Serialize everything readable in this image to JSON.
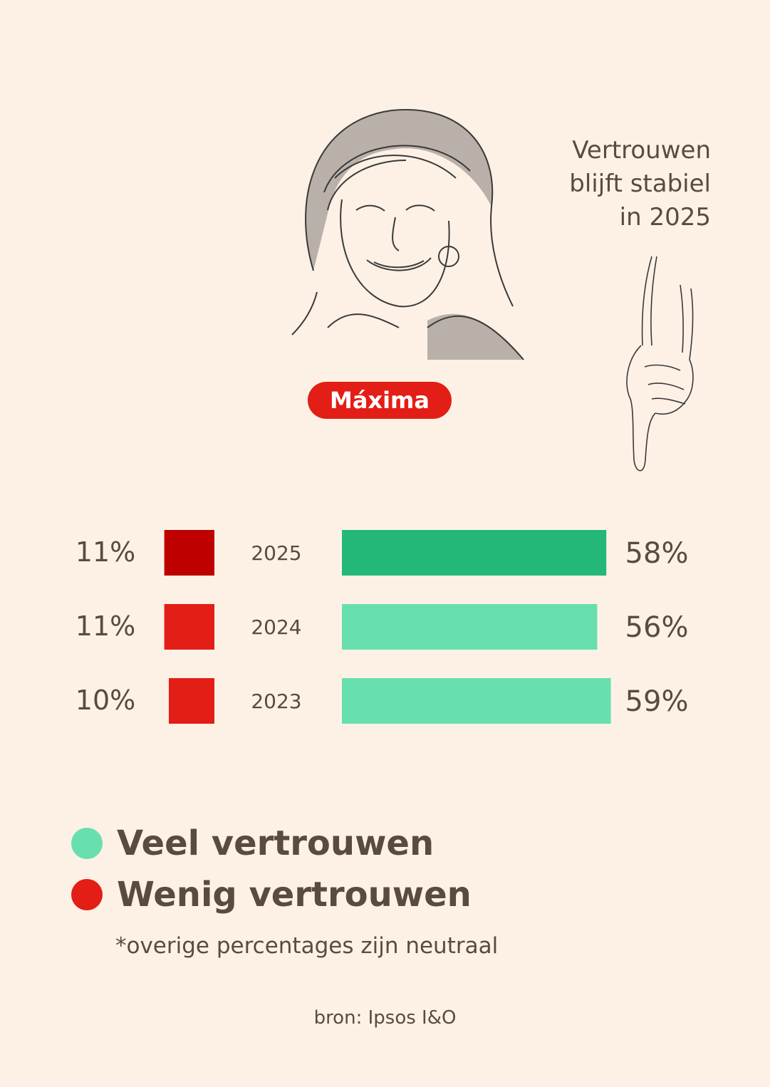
{
  "headline": {
    "line1": "Vertrouwen",
    "line2": "blijft stabiel",
    "line3": "in 2025"
  },
  "person": {
    "name": "Máxima",
    "portrait": "portrait-sketch-maxima",
    "hand_icon": "pointing-hand-down-icon"
  },
  "chart_data": {
    "type": "bar",
    "orientation": "horizontal",
    "categories": [
      "2025",
      "2024",
      "2023"
    ],
    "series": [
      {
        "name": "Veel vertrouwen",
        "values": [
          58,
          56,
          59
        ],
        "labels": [
          "58%",
          "56%",
          "59%"
        ],
        "colors": [
          "#24b878",
          "#67dfaf",
          "#67dfaf"
        ]
      },
      {
        "name": "Wenig vertrouwen",
        "values": [
          11,
          11,
          10
        ],
        "labels": [
          "11%",
          "11%",
          "10%"
        ],
        "colors": [
          "#bf0000",
          "#e31e16",
          "#e31e16"
        ]
      }
    ],
    "xlim": [
      0,
      100
    ],
    "grid": false
  },
  "legend": {
    "high": {
      "label": "Veel vertrouwen",
      "color": "#67dfaf"
    },
    "low": {
      "label": "Wenig vertrouwen",
      "color": "#e31e16"
    }
  },
  "footnote": "*overige percentages zijn neutraal",
  "source": "bron: Ipsos I&O"
}
